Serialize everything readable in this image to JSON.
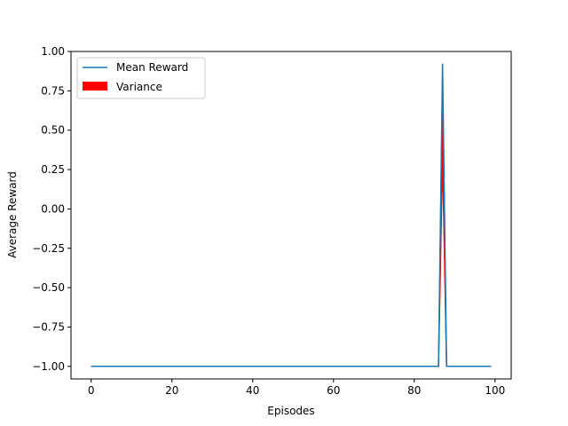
{
  "chart_data": {
    "type": "line",
    "xlabel": "Episodes",
    "ylabel": "Average Reward",
    "xlim": [
      -5,
      104
    ],
    "ylim": [
      -1.08,
      1.0
    ],
    "xticks": [
      0,
      20,
      40,
      60,
      80,
      100
    ],
    "yticks": [
      -1.0,
      -0.75,
      -0.5,
      -0.25,
      0.0,
      0.25,
      0.5,
      0.75,
      1.0
    ],
    "xtick_labels": [
      "0",
      "20",
      "40",
      "60",
      "80",
      "100"
    ],
    "ytick_labels": [
      "−1.00",
      "−0.75",
      "−0.50",
      "−0.25",
      "0.00",
      "0.25",
      "0.50",
      "0.75",
      "1.00"
    ],
    "grid": false,
    "legend_position": "top-left",
    "series": [
      {
        "name": "Mean Reward",
        "kind": "line",
        "color": "#1f77b4",
        "x": [
          0,
          86,
          87,
          88,
          99
        ],
        "y": [
          -1.0,
          -1.0,
          0.92,
          -1.0,
          -1.0
        ]
      },
      {
        "name": "Variance",
        "kind": "band",
        "color": "#ff0000",
        "x": [
          0,
          86,
          87,
          88,
          99
        ],
        "lower": [
          -1.0,
          -1.0,
          0.35,
          -1.0,
          -1.0
        ],
        "upper": [
          -1.0,
          -1.0,
          0.92,
          -1.0,
          -1.0
        ]
      }
    ]
  }
}
